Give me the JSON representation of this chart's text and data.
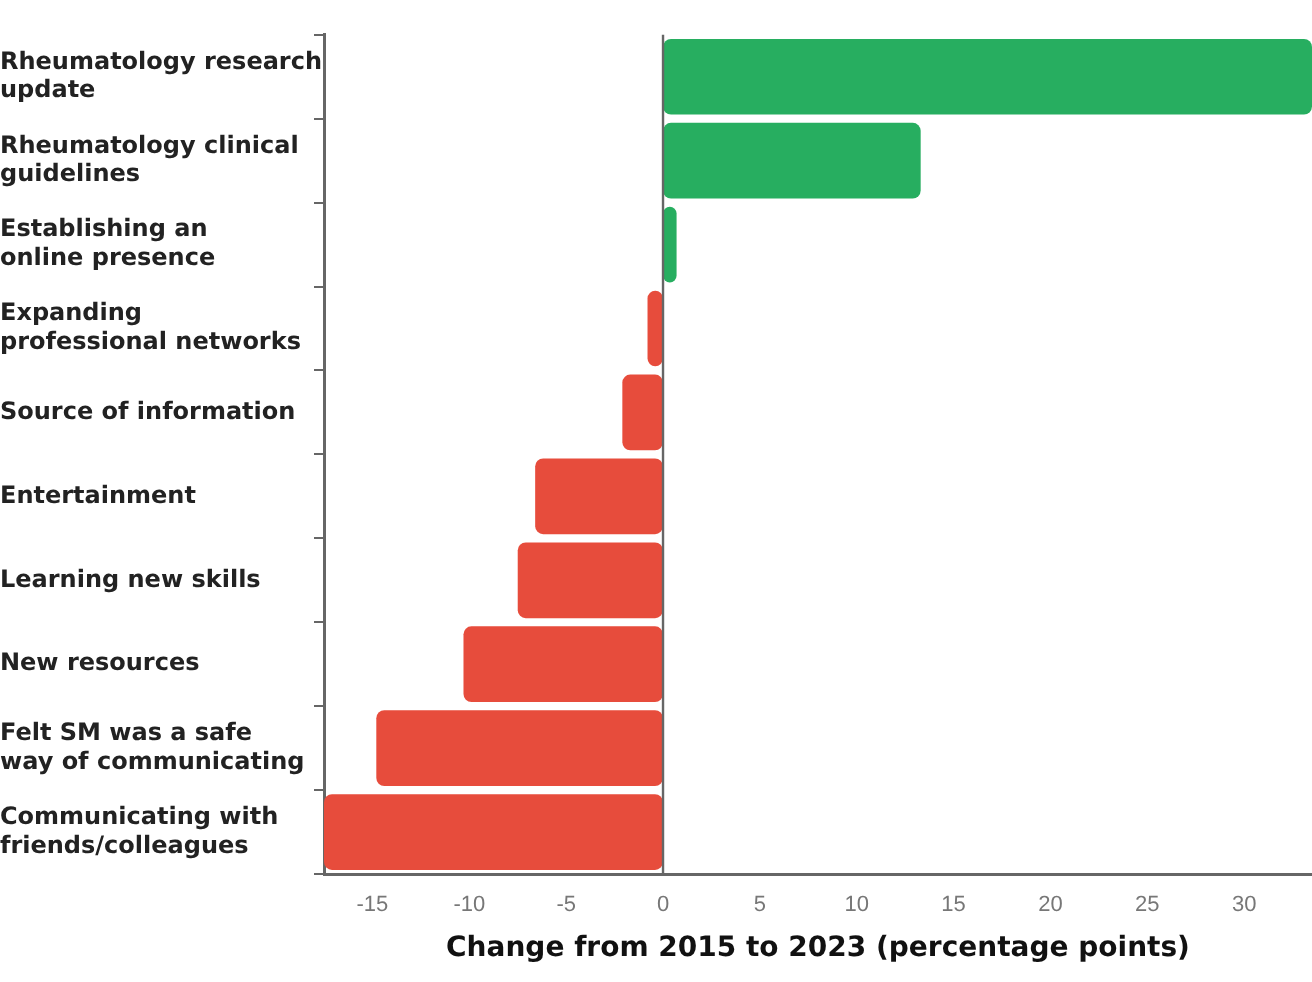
{
  "chart_data": {
    "type": "bar",
    "orientation": "horizontal",
    "xlabel": "Change from 2015 to 2023 (percentage points)",
    "categories": [
      "Rheumatology research update",
      "Rheumatology clinical guidelines",
      "Establishing an online presence",
      "Expanding professional networks",
      "Source of information",
      "Entertainment",
      "Learning new skills",
      "New resources",
      "Felt SM was a safe way of communicating",
      "Communicating with friends/colleagues"
    ],
    "values": [
      33.5,
      13.3,
      0.7,
      -0.8,
      -2.1,
      -6.6,
      -7.5,
      -10.3,
      -14.8,
      -17.5
    ],
    "colors": [
      "#27ae60",
      "#27ae60",
      "#27ae60",
      "#e74c3c",
      "#e74c3c",
      "#e74c3c",
      "#e74c3c",
      "#e74c3c",
      "#e74c3c",
      "#e74c3c"
    ],
    "xlim": [
      -17.5,
      33.5
    ],
    "xticks": [
      -15,
      -10,
      -5,
      0,
      5,
      10,
      15,
      20,
      25,
      30
    ],
    "ref_lines": [
      {
        "axis": "x",
        "value": 0
      }
    ],
    "grid": false,
    "legend": false
  }
}
